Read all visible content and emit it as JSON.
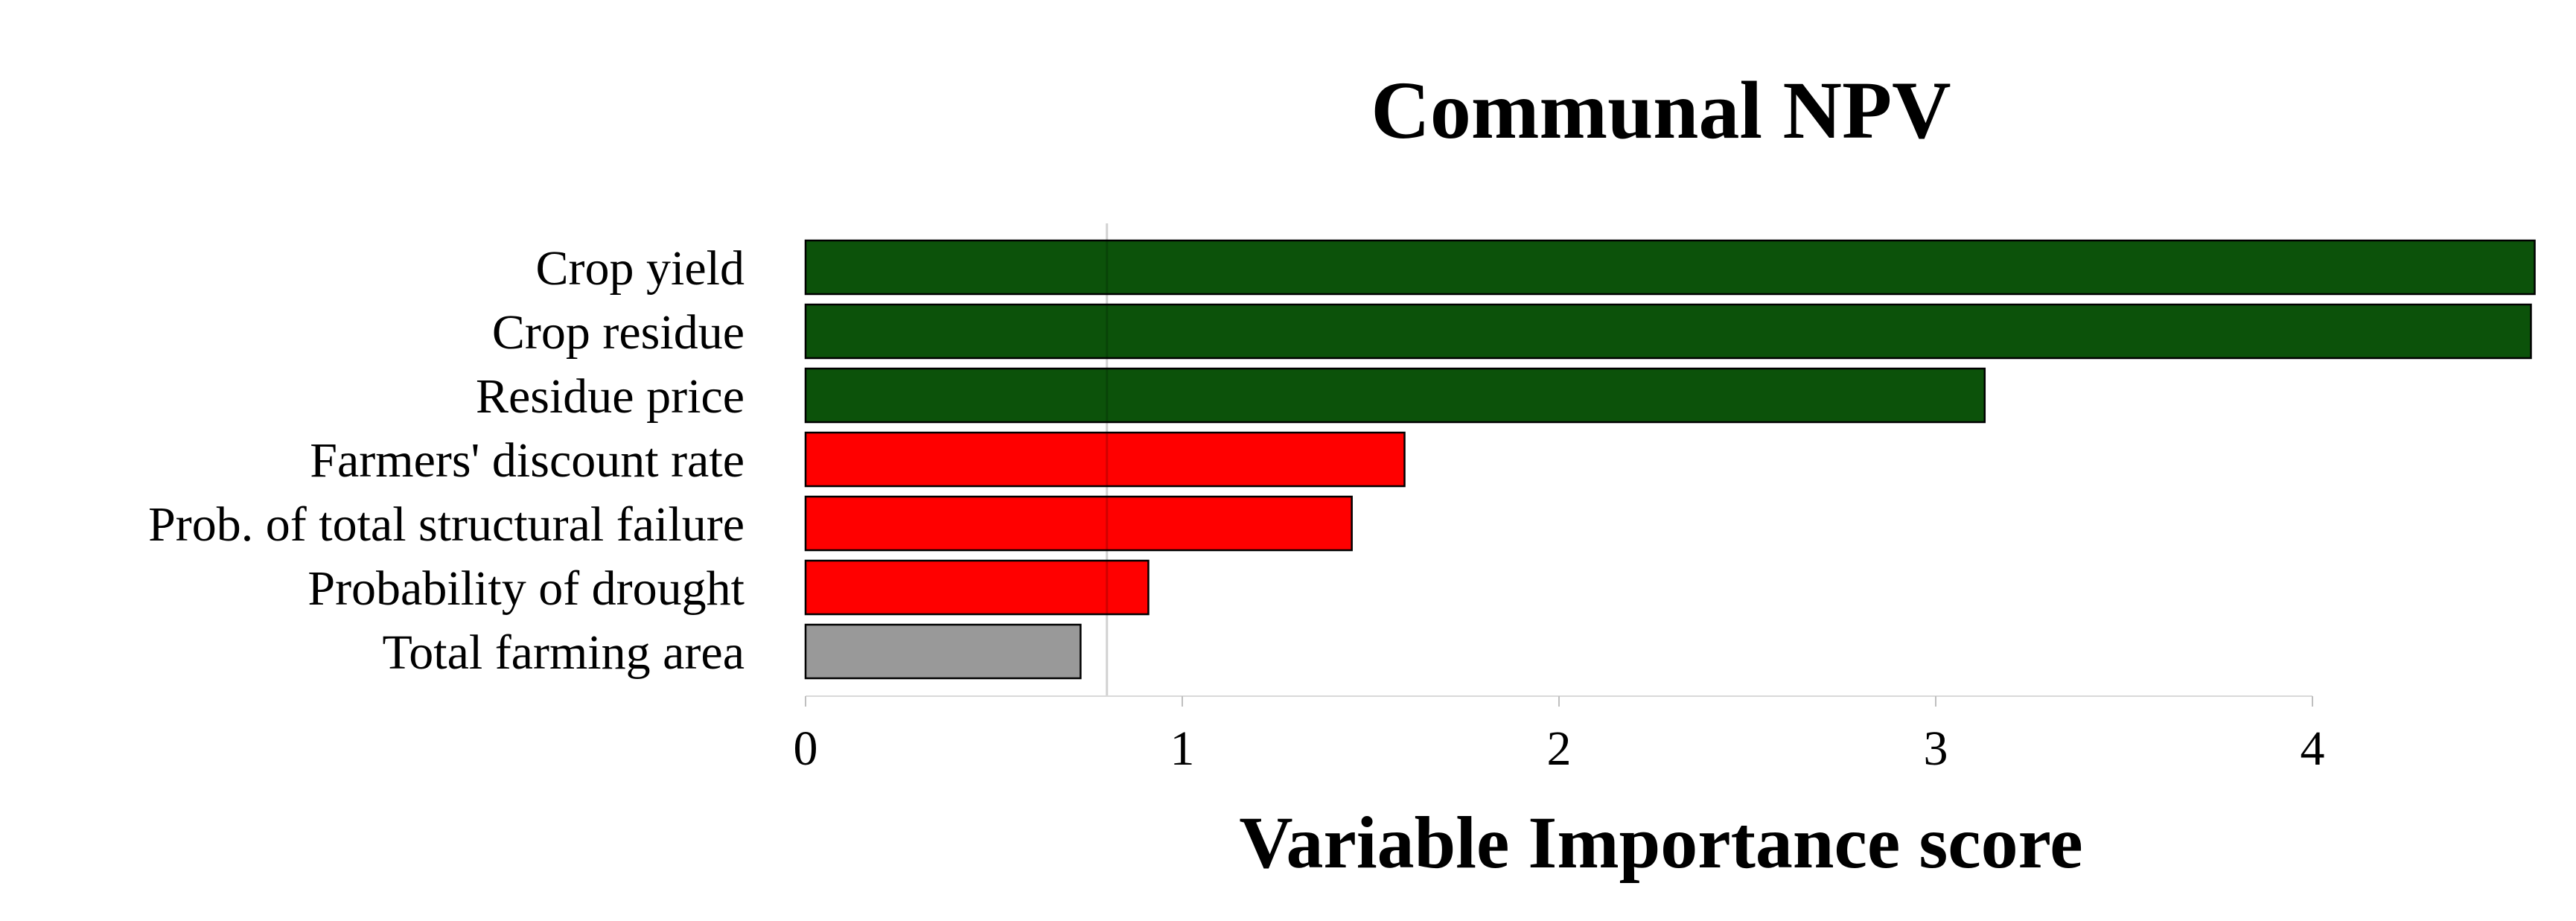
{
  "chart_data": {
    "type": "bar",
    "orientation": "horizontal",
    "title": "Communal NPV",
    "xlabel": "Variable Importance score",
    "ylabel": "",
    "xlim": [
      0,
      4.6
    ],
    "xticks": [
      0,
      1,
      2,
      3,
      4
    ],
    "threshold_line": 0.8,
    "grid": false,
    "legend": "none",
    "categories": [
      "Crop yield",
      "Crop residue",
      "Residue price",
      "Farmers' discount rate",
      "Prob. of total structural failure",
      "Probability of drought",
      "Total farming area"
    ],
    "values": [
      4.59,
      4.58,
      3.13,
      1.59,
      1.45,
      0.91,
      0.73
    ],
    "bar_colors": [
      "#0c520a",
      "#0c520a",
      "#0c520a",
      "#ff0000",
      "#ff0000",
      "#ff0000",
      "#999999"
    ]
  }
}
